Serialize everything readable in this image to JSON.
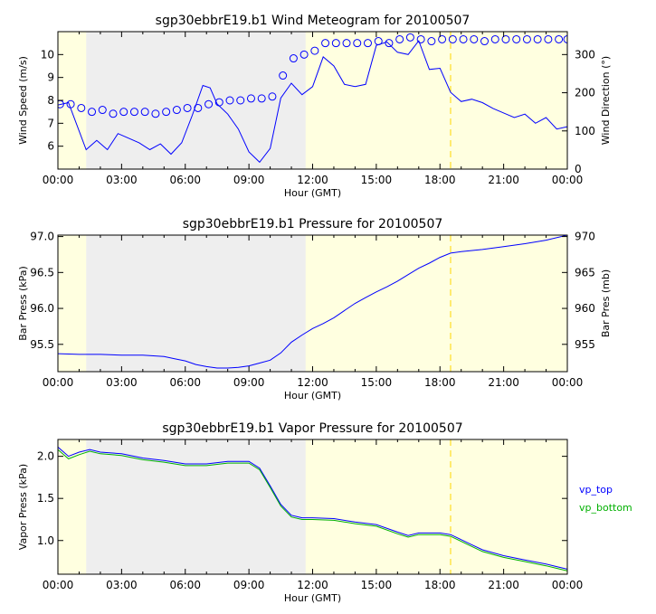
{
  "chart_data": [
    {
      "type": "line",
      "title": "sgp30ebbrE19.b1 Wind Meteogram for 20100507",
      "xlabel": "Hour (GMT)",
      "ylabel": "Wind Speed (m/s)",
      "y2label": "Wind Direction (°)",
      "xlim": [
        0,
        24
      ],
      "ylim": [
        5,
        11
      ],
      "y2lim": [
        0,
        360
      ],
      "xticks": [
        0,
        3,
        6,
        9,
        12,
        15,
        18,
        21,
        24
      ],
      "xticklabels": [
        "00:00",
        "03:00",
        "06:00",
        "09:00",
        "12:00",
        "15:00",
        "18:00",
        "21:00",
        "00:00"
      ],
      "yticks": [
        6,
        7,
        8,
        9,
        10
      ],
      "yticklabels": [
        "6",
        "7",
        "8",
        "9",
        "10"
      ],
      "y2ticks": [
        0,
        100,
        200,
        300
      ],
      "y2ticklabels": [
        "0",
        "100",
        "200",
        "300"
      ],
      "shading": {
        "night_start": 1.33,
        "night_end": 11.67,
        "day_color": "#ffffe0",
        "night_color": "#eeeeee"
      },
      "marker_line": {
        "x": 18.5,
        "color": "#ffd700"
      },
      "series": [
        {
          "name": "Wind Speed",
          "style": "line",
          "color": "#0000ff",
          "x": [
            0,
            0.5,
            1.33,
            1.83,
            2.33,
            2.83,
            3.33,
            3.83,
            4.33,
            4.83,
            5.33,
            5.83,
            6.33,
            6.83,
            7.17,
            7.5,
            8.0,
            8.5,
            9.0,
            9.5,
            10.0,
            10.5,
            11.0,
            11.5,
            12.0,
            12.5,
            13.0,
            13.5,
            14.0,
            14.5,
            15.0,
            15.5,
            16.0,
            16.5,
            17.0,
            17.5,
            18.0,
            18.5,
            19.0,
            19.5,
            20.0,
            20.5,
            21.0,
            21.5,
            22.0,
            22.5,
            23.0,
            23.5,
            24.0
          ],
          "y": [
            7.8,
            7.9,
            5.85,
            6.25,
            5.85,
            6.55,
            6.35,
            6.15,
            5.85,
            6.1,
            5.65,
            6.15,
            7.35,
            8.65,
            8.55,
            7.85,
            7.4,
            6.75,
            5.75,
            5.3,
            5.9,
            8.1,
            8.75,
            8.25,
            8.6,
            9.9,
            9.5,
            8.7,
            8.6,
            8.7,
            10.4,
            10.55,
            10.1,
            10.0,
            10.6,
            9.35,
            9.4,
            8.35,
            7.95,
            8.05,
            7.9,
            7.65,
            7.45,
            7.25,
            7.4,
            7.0,
            7.25,
            6.75,
            6.85
          ]
        },
        {
          "name": "Wind Direction",
          "style": "circles",
          "axis": "right",
          "color": "#0000ff",
          "x": [
            0.1,
            0.6,
            1.1,
            1.6,
            2.1,
            2.6,
            3.1,
            3.6,
            4.1,
            4.6,
            5.1,
            5.6,
            6.1,
            6.6,
            7.1,
            7.6,
            8.1,
            8.6,
            9.1,
            9.6,
            10.1,
            10.6,
            11.1,
            11.6,
            12.1,
            12.6,
            13.1,
            13.6,
            14.1,
            14.6,
            15.1,
            15.6,
            16.1,
            16.6,
            17.1,
            17.6,
            18.1,
            18.6,
            19.1,
            19.6,
            20.1,
            20.6,
            21.1,
            21.6,
            22.1,
            22.6,
            23.1,
            23.6,
            24.0
          ],
          "y": [
            170,
            170,
            160,
            150,
            155,
            145,
            150,
            150,
            150,
            145,
            150,
            155,
            160,
            160,
            170,
            175,
            180,
            180,
            185,
            185,
            190,
            245,
            290,
            300,
            310,
            330,
            330,
            330,
            330,
            330,
            335,
            330,
            340,
            345,
            340,
            335,
            340,
            340,
            340,
            340,
            335,
            340,
            340,
            340,
            340,
            340,
            340,
            340,
            340
          ]
        }
      ]
    },
    {
      "type": "line",
      "title": "sgp30ebbrE19.b1 Pressure for 20100507",
      "xlabel": "Hour (GMT)",
      "ylabel": "Bar Press (kPa)",
      "y2label": "Bar Pres (mb)",
      "xlim": [
        0,
        24
      ],
      "ylim": [
        95.12,
        97.02
      ],
      "y2lim": [
        951.2,
        970.2
      ],
      "xticks": [
        0,
        3,
        6,
        9,
        12,
        15,
        18,
        21,
        24
      ],
      "xticklabels": [
        "00:00",
        "03:00",
        "06:00",
        "09:00",
        "12:00",
        "15:00",
        "18:00",
        "21:00",
        "00:00"
      ],
      "yticks": [
        95.5,
        96.0,
        96.5,
        97.0
      ],
      "yticklabels": [
        "95.5",
        "96.0",
        "96.5",
        "97.0"
      ],
      "y2ticks": [
        955,
        960,
        965,
        970
      ],
      "y2ticklabels": [
        "955",
        "960",
        "965",
        "970"
      ],
      "shading": {
        "night_start": 1.33,
        "night_end": 11.67,
        "day_color": "#ffffe0",
        "night_color": "#eeeeee"
      },
      "marker_line": {
        "x": 18.5,
        "color": "#ffd700"
      },
      "series": [
        {
          "name": "Bar Press",
          "style": "line",
          "color": "#0000ff",
          "x": [
            0,
            1,
            2,
            3,
            4,
            5,
            5.5,
            6,
            6.5,
            7,
            7.5,
            8,
            8.5,
            9,
            9.5,
            10,
            10.5,
            11,
            11.5,
            12,
            12.5,
            13,
            13.5,
            14,
            14.5,
            15,
            15.5,
            16,
            16.5,
            17,
            17.5,
            18,
            18.5,
            19,
            20,
            21,
            22,
            23,
            24
          ],
          "y": [
            95.37,
            95.36,
            95.36,
            95.35,
            95.35,
            95.33,
            95.3,
            95.27,
            95.22,
            95.19,
            95.17,
            95.17,
            95.18,
            95.2,
            95.24,
            95.28,
            95.38,
            95.53,
            95.63,
            95.72,
            95.79,
            95.87,
            95.97,
            96.07,
            96.15,
            96.23,
            96.3,
            96.38,
            96.47,
            96.56,
            96.63,
            96.71,
            96.77,
            96.79,
            96.82,
            96.86,
            96.9,
            96.95,
            97.02
          ]
        }
      ]
    },
    {
      "type": "line",
      "title": "sgp30ebbrE19.b1 Vapor Pressure for 20100507",
      "xlabel": "Hour (GMT)",
      "ylabel": "Vapor Press (kPa)",
      "xlim": [
        0,
        24
      ],
      "ylim": [
        0.6,
        2.2
      ],
      "xticks": [
        0,
        3,
        6,
        9,
        12,
        15,
        18,
        21,
        24
      ],
      "xticklabels": [
        "00:00",
        "03:00",
        "06:00",
        "09:00",
        "12:00",
        "15:00",
        "18:00",
        "21:00",
        "00:00"
      ],
      "yticks": [
        1.0,
        1.5,
        2.0
      ],
      "yticklabels": [
        "1.0",
        "1.5",
        "2.0"
      ],
      "legend": {
        "placement": "right"
      },
      "shading": {
        "night_start": 1.33,
        "night_end": 11.67,
        "day_color": "#ffffe0",
        "night_color": "#eeeeee"
      },
      "marker_line": {
        "x": 18.5,
        "color": "#ffd700"
      },
      "series": [
        {
          "name": "vp_top",
          "style": "line",
          "color": "#0000ff",
          "x": [
            0,
            0.5,
            1.0,
            1.5,
            2.0,
            3.0,
            4.0,
            5.0,
            6.0,
            7.0,
            8.0,
            9.0,
            9.5,
            10.0,
            10.5,
            11.0,
            11.5,
            12.0,
            13.0,
            14.0,
            15.0,
            16.0,
            16.5,
            17.0,
            18.0,
            18.5,
            19.0,
            19.5,
            20.0,
            21.0,
            22.0,
            23.0,
            23.5,
            24.0
          ],
          "y": [
            2.11,
            2.0,
            2.05,
            2.08,
            2.05,
            2.03,
            1.98,
            1.95,
            1.91,
            1.91,
            1.94,
            1.94,
            1.86,
            1.65,
            1.43,
            1.3,
            1.27,
            1.27,
            1.26,
            1.22,
            1.19,
            1.1,
            1.06,
            1.09,
            1.09,
            1.07,
            1.01,
            0.95,
            0.89,
            0.82,
            0.77,
            0.72,
            0.69,
            0.66
          ]
        },
        {
          "name": "vp_bottom",
          "style": "line",
          "color": "#00b000",
          "x": [
            0,
            0.5,
            1.0,
            1.5,
            2.0,
            3.0,
            4.0,
            5.0,
            6.0,
            7.0,
            8.0,
            9.0,
            9.5,
            10.0,
            10.5,
            11.0,
            11.5,
            12.0,
            13.0,
            14.0,
            15.0,
            16.0,
            16.5,
            17.0,
            18.0,
            18.5,
            19.0,
            19.5,
            20.0,
            21.0,
            22.0,
            23.0,
            23.5,
            24.0
          ],
          "y": [
            2.08,
            1.97,
            2.02,
            2.06,
            2.03,
            2.01,
            1.96,
            1.93,
            1.89,
            1.89,
            1.92,
            1.92,
            1.84,
            1.63,
            1.41,
            1.28,
            1.25,
            1.25,
            1.24,
            1.2,
            1.17,
            1.08,
            1.04,
            1.07,
            1.07,
            1.05,
            0.99,
            0.93,
            0.87,
            0.8,
            0.75,
            0.7,
            0.67,
            0.64
          ]
        }
      ]
    }
  ]
}
